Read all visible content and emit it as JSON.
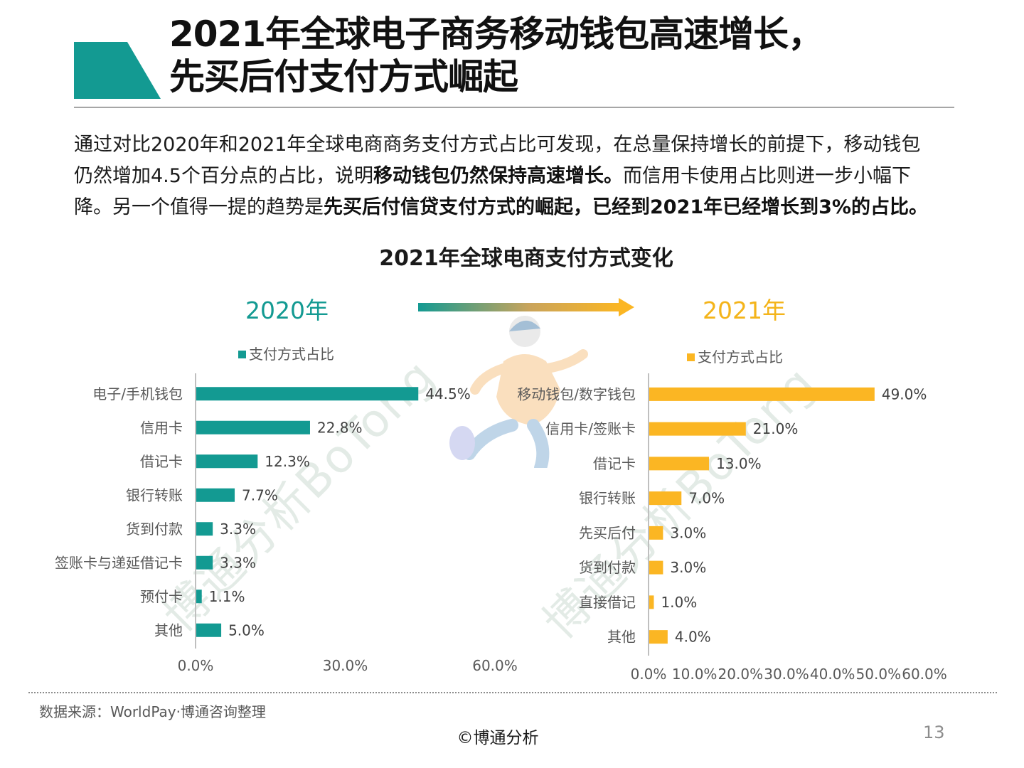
{
  "header": {
    "title_line1": "2021年全球电子商务移动钱包高速增长，",
    "title_line2": "先买后付支付方式崛起",
    "accent_color": "#139a92"
  },
  "summary": {
    "l1": "通过对比2020年和2021年全球电商商务支付方式占比可发现，在总量保持增长的前提下，移动钱包",
    "l2a": "仍然增加4.5个百分点的占比，说明",
    "l2b": "移动钱包仍然保持高速增长。",
    "l2c": "而信用卡使用占比则进一步小幅下",
    "l3a": "降。另一个值得一提的趋势是",
    "l3b": "先买后付信贷支付方式的崛起，已经到2021年已经增长到3%的占比。"
  },
  "figure": {
    "title": "2021年全球电商支付方式变化",
    "year_left": "2020年",
    "year_right": "2021年",
    "watermark": "博通分析BoTong"
  },
  "chart_data": [
    {
      "type": "bar",
      "orientation": "horizontal",
      "title": "2020年",
      "color": "#139a92",
      "categories": [
        "电子/手机钱包",
        "信用卡",
        "借记卡",
        "银行转账",
        "货到付款",
        "签账卡与递延借记卡",
        "预付卡",
        "其他"
      ],
      "series": [
        {
          "name": "支付方式占比",
          "values": [
            44.5,
            22.8,
            12.3,
            7.7,
            3.3,
            3.3,
            1.1,
            5.0
          ]
        }
      ],
      "value_labels": [
        "44.5%",
        "22.8%",
        "12.3%",
        "7.7%",
        "3.3%",
        "3.3%",
        "1.1%",
        "5.0%"
      ],
      "xlim": [
        0,
        60
      ],
      "xticks": [
        "0.0%",
        "30.0%",
        "60.0%"
      ],
      "legend": "top",
      "grid": false
    },
    {
      "type": "bar",
      "orientation": "horizontal",
      "title": "2021年",
      "color": "#fbb623",
      "highlight_color": "#c00000",
      "categories": [
        "移动钱包/数字钱包",
        "信用卡/签账卡",
        "借记卡",
        "银行转账",
        "先买后付",
        "货到付款",
        "直接借记",
        "其他"
      ],
      "series": [
        {
          "name": "支付方式占比",
          "values": [
            49.0,
            21.0,
            13.0,
            7.0,
            3.0,
            3.0,
            1.0,
            4.0
          ]
        }
      ],
      "value_labels": [
        "49.0%",
        "21.0%",
        "13.0%",
        "7.0%",
        "3.0%",
        "3.0%",
        "1.0%",
        "4.0%"
      ],
      "highlighted_category": "先买后付",
      "xlim": [
        0,
        60
      ],
      "xticks": [
        "0.0%",
        "10.0%",
        "20.0%",
        "30.0%",
        "40.0%",
        "50.0%",
        "60.0%"
      ],
      "legend": "top",
      "grid": false
    }
  ],
  "footer": {
    "source": "数据来源：WorldPay·博通咨询整理",
    "copyright": "©博通分析",
    "page": "13"
  }
}
